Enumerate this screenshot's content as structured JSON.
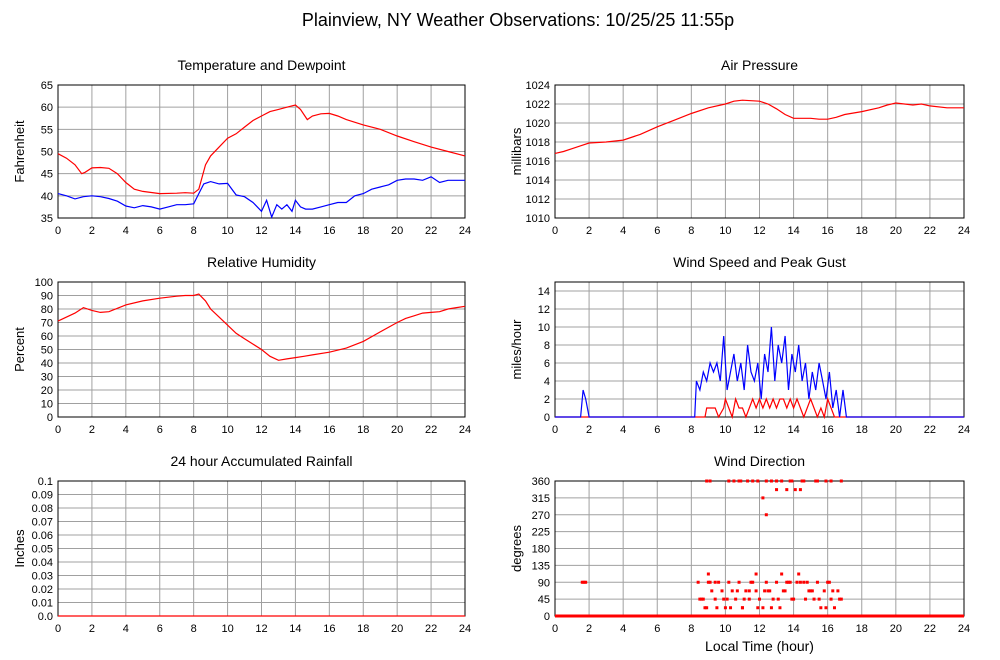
{
  "page_title": "Plainview, NY Weather Observations: 10/25/25 11:55p",
  "colors": {
    "red": "#ff0000",
    "blue": "#0000ff",
    "grid": "#a0a0a0",
    "frame": "#000000"
  },
  "chart_data": [
    {
      "id": "temp",
      "type": "line",
      "title": "Temperature and Dewpoint",
      "xlabel": "",
      "ylabel": "Fahrenheit",
      "xlim": [
        0,
        24
      ],
      "ylim": [
        35,
        65
      ],
      "xticks": [
        0,
        2,
        4,
        6,
        8,
        10,
        12,
        14,
        16,
        18,
        20,
        22,
        24
      ],
      "yticks": [
        35,
        40,
        45,
        50,
        55,
        60,
        65
      ],
      "grid": true,
      "series": [
        {
          "color": "#ff0000",
          "x": [
            0,
            0.5,
            1,
            1.4,
            1.6,
            2,
            2.5,
            3,
            3.5,
            4,
            4.5,
            5,
            6,
            7,
            7.5,
            8,
            8.3,
            8.7,
            9,
            9.5,
            10,
            10.5,
            11,
            11.5,
            12,
            12.5,
            13,
            13.5,
            14,
            14.3,
            14.7,
            15,
            15.5,
            16,
            16.5,
            17,
            18,
            19,
            20,
            21,
            22,
            23,
            24
          ],
          "y": [
            49.5,
            48.5,
            47,
            45,
            45.3,
            46.3,
            46.4,
            46.2,
            45,
            43,
            41.5,
            41,
            40.5,
            40.6,
            40.7,
            40.6,
            41.5,
            47,
            49,
            51,
            53,
            54,
            55.5,
            57,
            58,
            59,
            59.5,
            60,
            60.5,
            59.5,
            57.2,
            58,
            58.5,
            58.6,
            58,
            57.2,
            56,
            55,
            53.5,
            52.2,
            51,
            50,
            49
          ]
        },
        {
          "color": "#0000ff",
          "x": [
            0,
            0.5,
            1,
            1.5,
            2,
            2.5,
            3,
            3.5,
            4,
            4.5,
            5,
            5.5,
            6,
            6.5,
            7,
            7.5,
            8,
            8.3,
            8.6,
            9,
            9.5,
            10,
            10.5,
            11,
            11.5,
            12,
            12.3,
            12.6,
            12.9,
            13.2,
            13.5,
            13.8,
            14,
            14.3,
            14.6,
            15,
            15.5,
            16,
            16.5,
            17,
            17.5,
            18,
            18.5,
            19,
            19.5,
            20,
            20.5,
            21,
            21.5,
            22,
            22.5,
            23,
            24
          ],
          "y": [
            40.5,
            40,
            39.3,
            39.8,
            40,
            39.8,
            39.4,
            38.8,
            37.7,
            37.3,
            37.8,
            37.5,
            37,
            37.5,
            38,
            38,
            38.2,
            40.5,
            42.7,
            43.2,
            42.7,
            42.8,
            40.2,
            39.8,
            38.5,
            36.5,
            39,
            35.2,
            38,
            37,
            38,
            36.5,
            39,
            37.5,
            37,
            37,
            37.5,
            38,
            38.5,
            38.5,
            40,
            40.5,
            41.5,
            42,
            42.5,
            43.5,
            43.8,
            43.8,
            43.5,
            44.3,
            43,
            43.5,
            43.5
          ]
        }
      ]
    },
    {
      "id": "pressure",
      "type": "line",
      "title": "Air Pressure",
      "xlabel": "",
      "ylabel": "millibars",
      "xlim": [
        0,
        24
      ],
      "ylim": [
        1010,
        1024
      ],
      "xticks": [
        0,
        2,
        4,
        6,
        8,
        10,
        12,
        14,
        16,
        18,
        20,
        22,
        24
      ],
      "yticks": [
        1010,
        1012,
        1014,
        1016,
        1018,
        1020,
        1022,
        1024
      ],
      "grid": true,
      "series": [
        {
          "color": "#ff0000",
          "x": [
            0,
            0.5,
            1,
            1.5,
            2,
            3,
            4,
            5,
            6,
            7,
            8,
            9,
            10,
            10.5,
            11,
            12,
            12.5,
            13,
            13.5,
            14,
            15,
            15.5,
            16,
            16.5,
            17,
            18,
            19,
            19.5,
            20,
            21,
            21.5,
            22,
            23,
            24
          ],
          "y": [
            1016.8,
            1017,
            1017.3,
            1017.6,
            1017.9,
            1018,
            1018.2,
            1018.8,
            1019.6,
            1020.3,
            1021,
            1021.6,
            1022,
            1022.3,
            1022.4,
            1022.3,
            1022,
            1021.5,
            1020.9,
            1020.5,
            1020.5,
            1020.4,
            1020.4,
            1020.6,
            1020.9,
            1021.2,
            1021.6,
            1021.9,
            1022.1,
            1021.9,
            1022,
            1021.8,
            1021.6,
            1021.6
          ]
        }
      ]
    },
    {
      "id": "humidity",
      "type": "line",
      "title": "Relative Humidity",
      "xlabel": "",
      "ylabel": "Percent",
      "xlim": [
        0,
        24
      ],
      "ylim": [
        0,
        100
      ],
      "xticks": [
        0,
        2,
        4,
        6,
        8,
        10,
        12,
        14,
        16,
        18,
        20,
        22,
        24
      ],
      "yticks": [
        0,
        10,
        20,
        30,
        40,
        50,
        60,
        70,
        80,
        90,
        100
      ],
      "grid": true,
      "series": [
        {
          "color": "#ff0000",
          "x": [
            0,
            0.5,
            1,
            1.5,
            2,
            2.5,
            3,
            4,
            5,
            6,
            7,
            7.5,
            8,
            8.3,
            8.7,
            9,
            9.5,
            10,
            10.5,
            11,
            11.5,
            12,
            12.5,
            13,
            13.5,
            14,
            14.5,
            15,
            16,
            17,
            18,
            19,
            20,
            20.5,
            21,
            21.5,
            22,
            22.5,
            23,
            23.5,
            24
          ],
          "y": [
            71,
            74,
            77,
            81,
            79,
            77.5,
            78,
            83,
            86,
            88,
            89.5,
            90,
            90,
            91,
            86,
            80,
            74,
            68,
            62,
            58,
            54,
            50,
            45,
            42,
            43,
            44,
            45,
            46,
            48,
            51,
            56,
            63,
            70,
            73,
            75,
            77,
            77.5,
            78,
            80,
            81,
            82
          ]
        }
      ]
    },
    {
      "id": "wind",
      "type": "line",
      "title": "Wind Speed and Peak Gust",
      "xlabel": "",
      "ylabel": "miles/hour",
      "xlim": [
        0,
        24
      ],
      "ylim": [
        0,
        15
      ],
      "xticks": [
        0,
        2,
        4,
        6,
        8,
        10,
        12,
        14,
        16,
        18,
        20,
        22,
        24
      ],
      "yticks": [
        0,
        2,
        4,
        6,
        8,
        10,
        12,
        14
      ],
      "grid": true,
      "series": [
        {
          "color": "#ff0000",
          "x": [
            0,
            8.8,
            8.9,
            9.2,
            9.4,
            9.6,
            9.9,
            10,
            10.2,
            10.4,
            10.6,
            10.8,
            11,
            11.2,
            11.4,
            11.6,
            11.8,
            12,
            12.2,
            12.4,
            12.6,
            12.8,
            13,
            13.2,
            13.4,
            13.6,
            13.8,
            14,
            14.2,
            14.4,
            14.6,
            14.8,
            15,
            15.2,
            15.4,
            15.6,
            15.8,
            16,
            16.2,
            16.4,
            16.6,
            24
          ],
          "y": [
            0,
            0,
            1,
            1,
            1,
            0,
            1,
            2,
            1,
            0,
            2,
            1,
            1,
            0,
            1,
            2,
            1,
            2,
            1,
            2,
            1,
            2,
            1,
            2,
            2,
            1,
            2,
            1,
            2,
            1,
            0,
            1,
            2,
            1,
            0,
            1,
            0,
            2,
            1,
            0,
            0,
            0
          ]
        },
        {
          "color": "#0000ff",
          "x": [
            0,
            1.5,
            1.65,
            1.8,
            2,
            8.2,
            8.3,
            8.5,
            8.7,
            8.9,
            9.1,
            9.3,
            9.5,
            9.7,
            9.9,
            10.1,
            10.3,
            10.5,
            10.7,
            10.9,
            11.1,
            11.3,
            11.5,
            11.7,
            11.9,
            12.1,
            12.3,
            12.5,
            12.7,
            12.9,
            13.1,
            13.3,
            13.5,
            13.7,
            13.9,
            14.1,
            14.3,
            14.5,
            14.7,
            14.9,
            15.1,
            15.3,
            15.5,
            15.7,
            15.9,
            16.1,
            16.3,
            16.5,
            16.7,
            16.9,
            17.1,
            24
          ],
          "y": [
            0,
            0,
            3,
            2,
            0,
            0,
            4,
            3,
            5,
            4,
            6,
            5,
            6,
            4,
            9,
            3,
            5,
            7,
            4,
            6,
            3,
            8,
            5,
            4,
            6,
            2,
            7,
            5,
            10,
            4,
            8,
            6,
            9,
            3,
            7,
            5,
            8,
            4,
            6,
            2,
            5,
            3,
            6,
            4,
            2,
            5,
            1,
            3,
            0,
            3,
            0,
            0
          ]
        }
      ]
    },
    {
      "id": "rain",
      "type": "line",
      "title": "24 hour Accumulated Rainfall",
      "xlabel": "",
      "ylabel": "Inches",
      "xlim": [
        0,
        24
      ],
      "ylim": [
        0,
        0.1
      ],
      "xticks": [
        0,
        2,
        4,
        6,
        8,
        10,
        12,
        14,
        16,
        18,
        20,
        22,
        24
      ],
      "yticks": [
        "0.0",
        "0.01",
        "0.02",
        "0.03",
        "0.04",
        "0.05",
        "0.06",
        "0.07",
        "0.08",
        "0.09",
        "0.1"
      ],
      "grid": true,
      "series": [
        {
          "color": "#ff0000",
          "x": [
            0,
            24
          ],
          "y": [
            0,
            0
          ]
        }
      ]
    },
    {
      "id": "direction",
      "type": "scatter",
      "title": "Wind Direction",
      "xlabel": "Local Time (hour)",
      "ylabel": "degrees",
      "xlim": [
        0,
        24
      ],
      "ylim": [
        0,
        360
      ],
      "xticks": [
        0,
        2,
        4,
        6,
        8,
        10,
        12,
        14,
        16,
        18,
        20,
        22,
        24
      ],
      "yticks": [
        0,
        45,
        90,
        135,
        180,
        225,
        270,
        315,
        360
      ],
      "grid": true,
      "series": [
        {
          "color": "#ff0000",
          "x": [
            1.6,
            1.7,
            1.8,
            8.4,
            8.6,
            8.8,
            9.0,
            9.2,
            9.4,
            9.6,
            9.8,
            10.0,
            10.2,
            10.4,
            10.6,
            10.8,
            11.0,
            11.2,
            11.4,
            11.6,
            11.8,
            12.0,
            12.2,
            12.4,
            12.6,
            12.8,
            13.0,
            13.2,
            13.4,
            13.6,
            13.8,
            14.0,
            14.2,
            14.4,
            14.6,
            14.8,
            15.0,
            15.2,
            15.4,
            15.6,
            15.8,
            16.0,
            16.2,
            16.4,
            16.6,
            16.8,
            8.7,
            8.9,
            9.1,
            9.5,
            9.9,
            10.3,
            10.7,
            11.1,
            11.5,
            11.9,
            12.3,
            12.7,
            13.1,
            13.5,
            13.9,
            14.3,
            14.7,
            15.1,
            15.5,
            15.9,
            16.3,
            16.7,
            8.9,
            9.1,
            10.5,
            10.9,
            11.3,
            11.9,
            12.7,
            13.3,
            13.9,
            14.5,
            15.3,
            15.9,
            10.2,
            10.8,
            11.6,
            12.4,
            13.0,
            13.8,
            14.6,
            15.4,
            16.2,
            16.8,
            12.2,
            12.4,
            13.0,
            13.6,
            14.1,
            14.4,
            8.5,
            9.0,
            9.4,
            10.1,
            11.0,
            11.4,
            11.8,
            12.5,
            13.3,
            13.7,
            14.9,
            16.1
          ],
          "y": [
            90,
            90,
            90,
            90,
            45,
            22,
            90,
            67,
            45,
            90,
            67,
            22,
            90,
            67,
            45,
            90,
            22,
            67,
            45,
            90,
            67,
            45,
            22,
            90,
            67,
            45,
            90,
            22,
            67,
            90,
            90,
            45,
            90,
            90,
            90,
            90,
            67,
            45,
            90,
            22,
            67,
            90,
            45,
            22,
            67,
            45,
            45,
            22,
            90,
            22,
            45,
            22,
            67,
            45,
            90,
            22,
            67,
            22,
            45,
            67,
            45,
            112,
            45,
            67,
            45,
            22,
            67,
            45,
            360,
            360,
            360,
            360,
            360,
            360,
            360,
            360,
            360,
            360,
            360,
            360,
            360,
            360,
            360,
            360,
            360,
            360,
            360,
            360,
            360,
            360,
            315,
            270,
            337,
            337,
            337,
            337,
            45,
            112,
            90,
            45,
            22,
            67,
            112,
            67,
            112,
            90,
            67,
            90
          ]
        },
        {
          "color": "#ff0000",
          "style": "baseline",
          "x": [
            0,
            1.5,
            1.9,
            8.3,
            17,
            24
          ],
          "y": [
            0,
            0,
            0,
            0,
            0,
            0
          ]
        }
      ]
    }
  ]
}
